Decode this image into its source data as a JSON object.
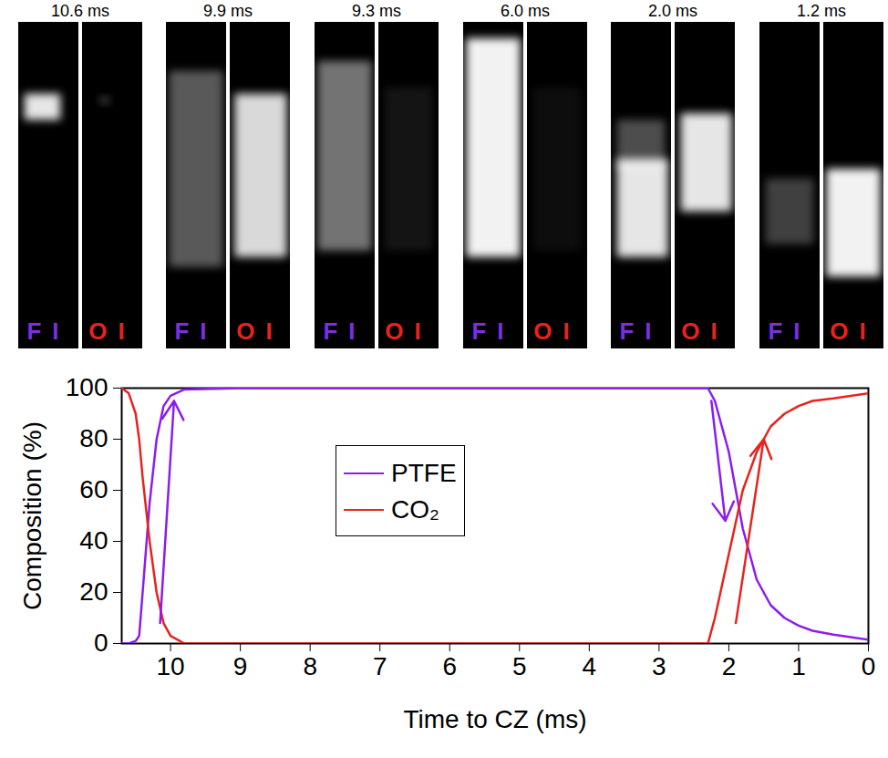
{
  "panels": {
    "label_colors": [
      "#7b2fe0",
      "#e8231d"
    ],
    "items": [
      {
        "time": "10.6 ms",
        "labels": [
          "FI",
          "OI"
        ]
      },
      {
        "time": "9.9 ms",
        "labels": [
          "FI",
          "OI"
        ]
      },
      {
        "time": "9.3 ms",
        "labels": [
          "FI",
          "OI"
        ]
      },
      {
        "time": "6.0 ms",
        "labels": [
          "FI",
          "OI"
        ]
      },
      {
        "time": "2.0 ms",
        "labels": [
          "FI",
          "OI"
        ]
      },
      {
        "time": "1.2 ms",
        "labels": [
          "FI",
          "OI"
        ]
      }
    ]
  },
  "chart_data": {
    "type": "line",
    "x_label": "Time to CZ (ms)",
    "y_label": "Composition (%)",
    "x": [
      10.7,
      10.6,
      10.5,
      10.45,
      10.4,
      10.3,
      10.2,
      10.1,
      10.0,
      9.8,
      9,
      8,
      7,
      6,
      5,
      4,
      3,
      2.3,
      2.2,
      2.0,
      1.8,
      1.6,
      1.4,
      1.2,
      1.0,
      0.8,
      0.5,
      0
    ],
    "series": [
      {
        "name": "PTFE",
        "color": "#8b1df0",
        "values": [
          0,
          0,
          1,
          3,
          20,
          55,
          80,
          93,
          97,
          99.5,
          100,
          100,
          100,
          100,
          100,
          100,
          100,
          100,
          95,
          75,
          45,
          25,
          15,
          10,
          7,
          5,
          3.5,
          1.5
        ]
      },
      {
        "name": "CO₂",
        "color": "#e8231d",
        "values": [
          100,
          98,
          90,
          80,
          65,
          40,
          20,
          8,
          3,
          0,
          0,
          0,
          0,
          0,
          0,
          0,
          0,
          0,
          10,
          35,
          60,
          75,
          85,
          90,
          93,
          95,
          96,
          98
        ]
      }
    ],
    "arrows": [
      {
        "x1": 10.15,
        "y1": 8,
        "x2": 9.95,
        "y2": 95,
        "color": "#8b1df0"
      },
      {
        "x1": 2.25,
        "y1": 95,
        "x2": 2.05,
        "y2": 48,
        "color": "#8b1df0"
      },
      {
        "x1": 1.9,
        "y1": 8,
        "x2": 1.5,
        "y2": 80,
        "color": "#e8231d"
      }
    ],
    "xlim": [
      10.7,
      0
    ],
    "xticks": [
      10,
      9,
      8,
      7,
      6,
      5,
      4,
      3,
      2,
      1,
      0
    ],
    "ylim": [
      0,
      100
    ],
    "yticks": [
      0,
      20,
      40,
      60,
      80,
      100
    ],
    "legend": "center",
    "grid": false
  }
}
